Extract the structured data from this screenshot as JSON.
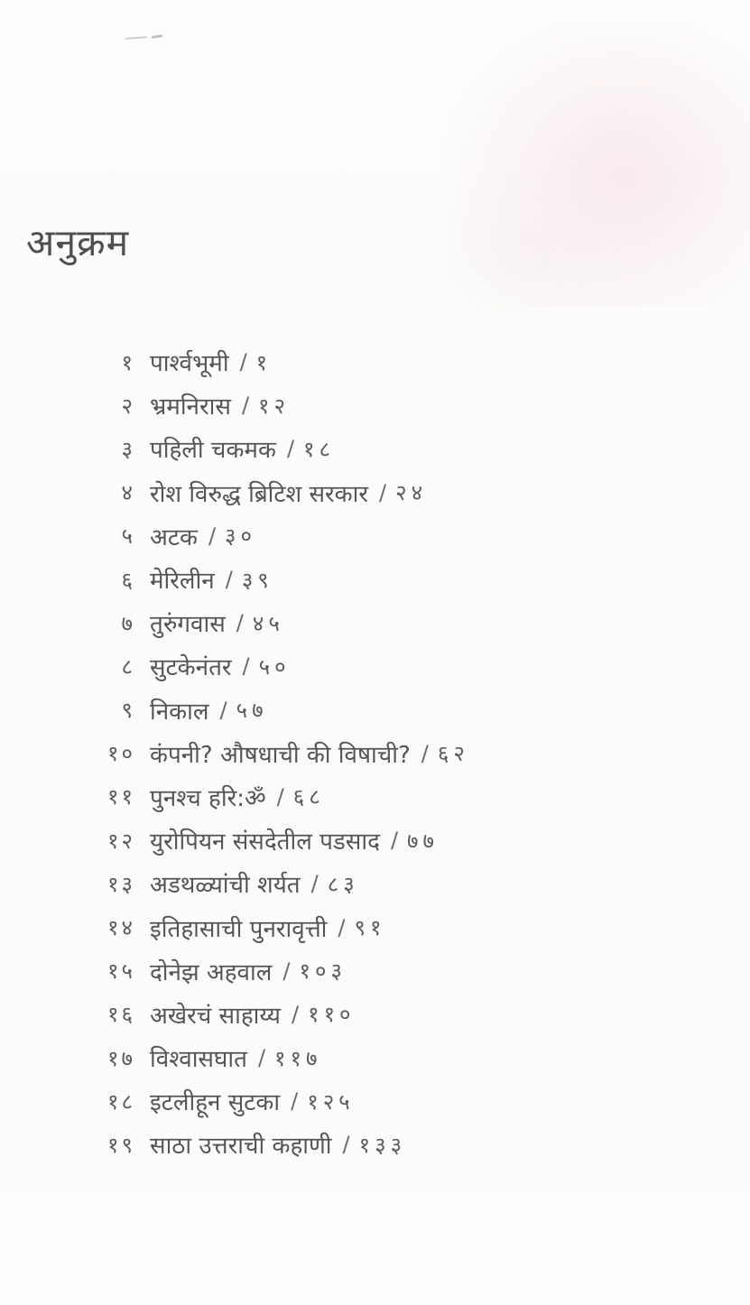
{
  "page": {
    "title": "अनुक्रम",
    "background_color": "#fdfdfc",
    "text_color": "#585858",
    "blotch_color": "#f5e4e8"
  },
  "toc": {
    "separator": "/",
    "items": [
      {
        "num": "१",
        "title": "पार्श्वभूमी",
        "page": "१"
      },
      {
        "num": "२",
        "title": "भ्रमनिरास",
        "page": "१२"
      },
      {
        "num": "३",
        "title": "पहिली चकमक",
        "page": "१८"
      },
      {
        "num": "४",
        "title": "रोश विरुद्ध ब्रिटिश सरकार",
        "page": "२४"
      },
      {
        "num": "५",
        "title": "अटक",
        "page": "३०"
      },
      {
        "num": "६",
        "title": "मेरिलीन",
        "page": "३९"
      },
      {
        "num": "७",
        "title": "तुरुंगवास",
        "page": "४५"
      },
      {
        "num": "८",
        "title": "सुटकेनंतर",
        "page": "५०"
      },
      {
        "num": "९",
        "title": "निकाल",
        "page": "५७"
      },
      {
        "num": "१०",
        "title": "कंपनी? औषधाची की विषाची?",
        "page": "६२"
      },
      {
        "num": "११",
        "title": "पुनश्च हरि:ॐ",
        "page": "६८"
      },
      {
        "num": "१२",
        "title": "युरोपियन संसदेतील पडसाद",
        "page": "७७"
      },
      {
        "num": "१३",
        "title": "अडथळ्यांची शर्यत",
        "page": "८३"
      },
      {
        "num": "१४",
        "title": "इतिहासाची पुनरावृत्ती",
        "page": "९१"
      },
      {
        "num": "१५",
        "title": "दोनेझ अहवाल",
        "page": "१०३"
      },
      {
        "num": "१६",
        "title": "अखेरचं साहाय्य",
        "page": "११०"
      },
      {
        "num": "१७",
        "title": "विश्वासघात",
        "page": "११७"
      },
      {
        "num": "१८",
        "title": "इटलीहून सुटका",
        "page": "१२५"
      },
      {
        "num": "१९",
        "title": "साठा उत्तराची कहाणी",
        "page": "१३३"
      }
    ]
  }
}
